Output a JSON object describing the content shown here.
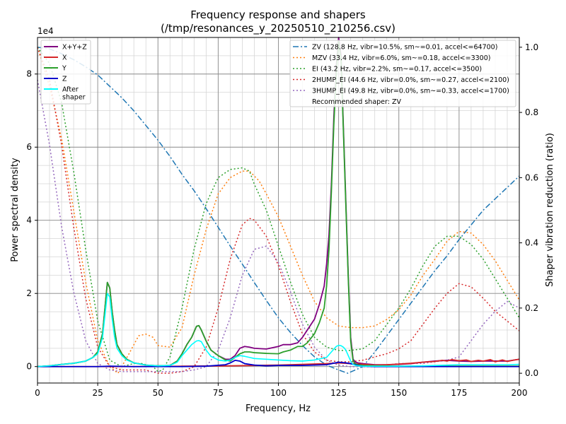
{
  "chart_data": {
    "type": "line",
    "title": "Frequency response and shapers",
    "subtitle": "(/tmp/resonances_y_20250510_210256.csv)",
    "xlabel": "Frequency, Hz",
    "ylabel": "Power spectral density",
    "y2label": "Shaper vibration reduction (ratio)",
    "y_offset_label": "1e4",
    "xlim": [
      0,
      200
    ],
    "ylim": [
      -4500,
      90000
    ],
    "y2lim": [
      -0.03,
      1.03
    ],
    "x_ticks": [
      0,
      25,
      50,
      75,
      100,
      125,
      150,
      175,
      200
    ],
    "y_ticks": [
      0,
      20000,
      40000,
      60000,
      80000
    ],
    "y_tick_labels": [
      "0",
      "2",
      "4",
      "6",
      "8"
    ],
    "y2_ticks": [
      0.0,
      0.2,
      0.4,
      0.6,
      0.8,
      1.0
    ],
    "y2_tick_labels": [
      "0.0",
      "0.2",
      "0.4",
      "0.6",
      "0.8",
      "1.0"
    ],
    "grid": true,
    "legend_left_placement": "top-left",
    "legend_right_placement": "top-right",
    "psd_series": [
      {
        "name": "X+Y+Z",
        "color": "#800080",
        "x": [
          0,
          5,
          10,
          15,
          20,
          23,
          25,
          27,
          28,
          29,
          30,
          31,
          32,
          33,
          35,
          37,
          40,
          45,
          50,
          55,
          58,
          60,
          62,
          64,
          66,
          67,
          68,
          70,
          72,
          75,
          78,
          80,
          82,
          84,
          86,
          88,
          90,
          95,
          100,
          102,
          105,
          108,
          110,
          112,
          115,
          117,
          119,
          120,
          121,
          122,
          123,
          124,
          125,
          126,
          127,
          128,
          129,
          130,
          131,
          132,
          133,
          134,
          135,
          137,
          140,
          145,
          150,
          155,
          160,
          165,
          170,
          175,
          180,
          185,
          190,
          195,
          200
        ],
        "y": [
          0,
          200,
          600,
          900,
          1500,
          2500,
          4000,
          9000,
          16000,
          23000,
          21500,
          15000,
          10000,
          6000,
          3500,
          2000,
          1000,
          400,
          200,
          300,
          1500,
          3500,
          6000,
          8000,
          11000,
          11200,
          10000,
          7000,
          4500,
          3000,
          2000,
          2000,
          3000,
          5000,
          5500,
          5300,
          5000,
          4800,
          5500,
          6000,
          6000,
          6500,
          8000,
          10000,
          13000,
          17000,
          22000,
          28000,
          36000,
          50000,
          68000,
          82000,
          90000,
          85000,
          65000,
          45000,
          25000,
          8000,
          2000,
          1200,
          1000,
          900,
          800,
          700,
          500,
          500,
          600,
          800,
          1200,
          1500,
          1700,
          1500,
          1400,
          1500,
          1500,
          1500,
          2000
        ]
      },
      {
        "name": "X",
        "color": "#d62728",
        "x": [
          0,
          20,
          40,
          60,
          80,
          100,
          120,
          125,
          130,
          135,
          140,
          145,
          150,
          155,
          160,
          165,
          168,
          170,
          172,
          175,
          178,
          180,
          183,
          185,
          188,
          190,
          193,
          195,
          198,
          200
        ],
        "y": [
          0,
          0,
          0,
          100,
          200,
          400,
          800,
          1000,
          800,
          600,
          400,
          500,
          700,
          900,
          1200,
          1400,
          1700,
          1500,
          1900,
          1600,
          1800,
          1400,
          1700,
          1500,
          1900,
          1300,
          1800,
          1400,
          1800,
          2000
        ]
      },
      {
        "name": "Y",
        "color": "#2ca02c",
        "x": [
          0,
          5,
          10,
          15,
          20,
          23,
          25,
          27,
          28,
          29,
          30,
          31,
          32,
          33,
          35,
          37,
          40,
          45,
          50,
          55,
          58,
          60,
          62,
          64,
          66,
          67,
          68,
          70,
          72,
          75,
          78,
          80,
          82,
          84,
          86,
          88,
          90,
          95,
          100,
          102,
          105,
          108,
          110,
          112,
          115,
          117,
          119,
          120,
          121,
          122,
          123,
          124,
          125,
          126,
          127,
          128,
          129,
          130,
          131,
          132,
          133,
          134,
          135,
          137,
          140,
          145,
          150,
          155,
          160,
          200
        ],
        "y": [
          0,
          200,
          600,
          900,
          1500,
          2500,
          4000,
          9000,
          16000,
          23000,
          21500,
          15000,
          10000,
          6000,
          3500,
          2000,
          1000,
          400,
          200,
          300,
          1500,
          3500,
          6000,
          8000,
          11000,
          11200,
          10000,
          7000,
          4500,
          3000,
          1800,
          1500,
          2500,
          3500,
          4000,
          4000,
          3800,
          3600,
          3500,
          4000,
          4500,
          5500,
          5500,
          6500,
          9000,
          12000,
          16000,
          22000,
          32000,
          48000,
          66000,
          80000,
          89000,
          84000,
          64000,
          44000,
          24000,
          7000,
          1500,
          700,
          500,
          400,
          300,
          250,
          200,
          150,
          100,
          100,
          100,
          100
        ]
      },
      {
        "name": "Z",
        "color": "#0000cd",
        "x": [
          0,
          25,
          30,
          40,
          50,
          60,
          70,
          78,
          80,
          82,
          84,
          86,
          90,
          95,
          100,
          110,
          120,
          125,
          128,
          130,
          133,
          135,
          140,
          150,
          175,
          200
        ],
        "y": [
          0,
          0,
          100,
          0,
          0,
          0,
          100,
          500,
          1000,
          1700,
          1500,
          800,
          400,
          200,
          300,
          300,
          500,
          1200,
          1000,
          800,
          300,
          100,
          0,
          0,
          0,
          0
        ]
      },
      {
        "name": "After\nshaper",
        "color": "#00ffff",
        "x": [
          0,
          5,
          10,
          15,
          20,
          23,
          25,
          27,
          28,
          29,
          30,
          31,
          32,
          33,
          35,
          37,
          40,
          45,
          50,
          55,
          58,
          60,
          62,
          64,
          66,
          67,
          68,
          70,
          72,
          75,
          78,
          80,
          82,
          84,
          86,
          88,
          90,
          95,
          100,
          105,
          110,
          115,
          120,
          122,
          124,
          125,
          126,
          127,
          128,
          129,
          130,
          131,
          132,
          133,
          134,
          135,
          137,
          140,
          145,
          150,
          155,
          160,
          165,
          170,
          175,
          180,
          185,
          190,
          195,
          200
        ],
        "y": [
          0,
          200,
          600,
          900,
          1500,
          2500,
          3500,
          8000,
          14000,
          20000,
          19000,
          13000,
          8000,
          5000,
          3000,
          1800,
          1000,
          400,
          200,
          300,
          1200,
          3000,
          4500,
          6000,
          7000,
          7100,
          6800,
          4500,
          2800,
          1800,
          1500,
          1800,
          2500,
          3000,
          2800,
          2500,
          2200,
          2000,
          1800,
          1600,
          1500,
          1800,
          2500,
          4000,
          5500,
          5800,
          5700,
          5300,
          4500,
          3000,
          1500,
          600,
          300,
          200,
          150,
          100,
          100,
          100,
          100,
          100,
          150,
          200,
          300,
          400,
          500,
          500,
          500,
          500,
          500,
          600
        ]
      }
    ],
    "shaper_series": [
      {
        "name": "ZV (128.8 Hz, vibr=10.5%, sm~=0.01, accel<=64700)",
        "color": "#1f77b4",
        "dash": "dashdot",
        "x": [
          0,
          5,
          10,
          15,
          20,
          25,
          30,
          35,
          40,
          45,
          50,
          55,
          60,
          65,
          70,
          75,
          80,
          85,
          90,
          95,
          100,
          105,
          110,
          115,
          120,
          125,
          128.8,
          135,
          140,
          145,
          150,
          155,
          160,
          165,
          170,
          175,
          180,
          185,
          190,
          195,
          200
        ],
        "y": [
          1.0,
          0.995,
          0.98,
          0.962,
          0.94,
          0.915,
          0.88,
          0.845,
          0.805,
          0.76,
          0.715,
          0.665,
          0.61,
          0.56,
          0.505,
          0.448,
          0.39,
          0.335,
          0.278,
          0.223,
          0.17,
          0.125,
          0.085,
          0.05,
          0.025,
          0.01,
          0.0,
          0.02,
          0.065,
          0.115,
          0.165,
          0.215,
          0.265,
          0.315,
          0.36,
          0.41,
          0.455,
          0.5,
          0.535,
          0.57,
          0.605
        ]
      },
      {
        "name": "MZV (33.4 Hz, vibr=6.0%, sm~=0.18, accel<=3300)",
        "color": "#ff7f0e",
        "dash": "dotted",
        "x": [
          0,
          5,
          10,
          15,
          20,
          25,
          30,
          33.4,
          38,
          42,
          45,
          48,
          50,
          55,
          60,
          65,
          70,
          75,
          80,
          85,
          88,
          92,
          95,
          100,
          105,
          110,
          115,
          120,
          125,
          130,
          135,
          140,
          145,
          150,
          155,
          160,
          165,
          170,
          175,
          180,
          185,
          190,
          195,
          200
        ],
        "y": [
          1.0,
          0.88,
          0.72,
          0.5,
          0.28,
          0.1,
          0.02,
          0.0,
          0.06,
          0.115,
          0.12,
          0.11,
          0.085,
          0.08,
          0.14,
          0.3,
          0.44,
          0.55,
          0.6,
          0.62,
          0.62,
          0.59,
          0.55,
          0.48,
          0.39,
          0.3,
          0.22,
          0.17,
          0.145,
          0.14,
          0.14,
          0.145,
          0.165,
          0.195,
          0.24,
          0.3,
          0.35,
          0.405,
          0.435,
          0.43,
          0.395,
          0.345,
          0.285,
          0.225
        ]
      },
      {
        "name": "EI (43.2 Hz, vibr=2.2%, sm~=0.17, accel<=3500)",
        "color": "#2ca02c",
        "dash": "dotted",
        "x": [
          0,
          5,
          10,
          15,
          20,
          25,
          30,
          35,
          40,
          43.2,
          48,
          50,
          52,
          55,
          60,
          65,
          70,
          75,
          80,
          85,
          88,
          90,
          95,
          100,
          105,
          110,
          115,
          120,
          125,
          130,
          135,
          140,
          145,
          150,
          155,
          160,
          165,
          170,
          175,
          180,
          185,
          190,
          195,
          200
        ],
        "y": [
          1.0,
          0.95,
          0.83,
          0.62,
          0.38,
          0.16,
          0.04,
          0.02,
          0.03,
          0.03,
          0.02,
          0.005,
          0.01,
          0.05,
          0.2,
          0.38,
          0.52,
          0.6,
          0.625,
          0.63,
          0.62,
          0.58,
          0.5,
          0.39,
          0.28,
          0.18,
          0.11,
          0.08,
          0.07,
          0.07,
          0.075,
          0.1,
          0.15,
          0.2,
          0.26,
          0.33,
          0.39,
          0.42,
          0.42,
          0.395,
          0.35,
          0.29,
          0.23,
          0.17
        ]
      },
      {
        "name": "2HUMP_EI (44.6 Hz, vibr=0.0%, sm~=0.27, accel<=2100)",
        "color": "#d62728",
        "dash": "dotted",
        "x": [
          0,
          5,
          10,
          15,
          20,
          25,
          30,
          35,
          40,
          45,
          50,
          55,
          60,
          65,
          70,
          75,
          80,
          85,
          88,
          90,
          95,
          100,
          105,
          110,
          115,
          120,
          125,
          130,
          135,
          140,
          145,
          150,
          155,
          160,
          165,
          170,
          175,
          180,
          185,
          190,
          195,
          200
        ],
        "y": [
          1.0,
          0.9,
          0.7,
          0.45,
          0.23,
          0.08,
          0.02,
          0.01,
          0.01,
          0.01,
          0.0,
          0.0,
          0.005,
          0.02,
          0.08,
          0.2,
          0.35,
          0.455,
          0.475,
          0.47,
          0.42,
          0.33,
          0.22,
          0.12,
          0.065,
          0.04,
          0.035,
          0.035,
          0.04,
          0.05,
          0.06,
          0.075,
          0.1,
          0.15,
          0.2,
          0.245,
          0.275,
          0.265,
          0.23,
          0.19,
          0.16,
          0.13
        ]
      },
      {
        "name": "3HUMP_EI (49.8 Hz, vibr=0.0%, sm~=0.33, accel<=1700)",
        "color": "#9467bd",
        "dash": "dotted",
        "x": [
          0,
          5,
          10,
          15,
          20,
          25,
          30,
          35,
          40,
          45,
          50,
          55,
          60,
          65,
          70,
          75,
          80,
          85,
          90,
          95,
          100,
          105,
          110,
          115,
          120,
          125,
          130,
          135,
          140,
          145,
          150,
          155,
          160,
          165,
          170,
          175,
          180,
          185,
          190,
          195,
          200
        ],
        "y": [
          0.9,
          0.7,
          0.45,
          0.25,
          0.1,
          0.03,
          0.01,
          0.005,
          0.005,
          0.005,
          0.005,
          0.005,
          0.005,
          0.01,
          0.02,
          0.07,
          0.17,
          0.3,
          0.38,
          0.39,
          0.34,
          0.25,
          0.15,
          0.08,
          0.04,
          0.025,
          0.02,
          0.02,
          0.02,
          0.025,
          0.03,
          0.03,
          0.03,
          0.035,
          0.04,
          0.05,
          0.1,
          0.15,
          0.19,
          0.22,
          0.2
        ]
      }
    ],
    "recommendation": "Recommended shaper: ZV"
  }
}
